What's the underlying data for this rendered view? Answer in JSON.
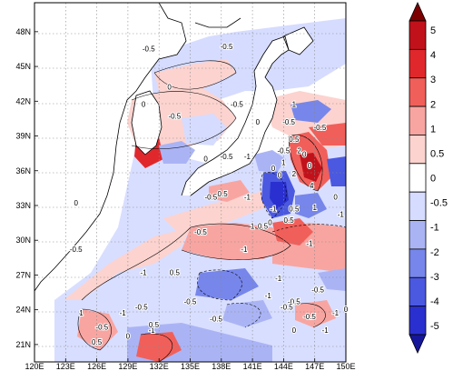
{
  "chart_data": {
    "type": "heatmap",
    "title": "",
    "xlabel": "",
    "ylabel": "",
    "x_ticks": [
      "120E",
      "123E",
      "126E",
      "129E",
      "132E",
      "135E",
      "138E",
      "141E",
      "144E",
      "147E",
      "150E"
    ],
    "y_ticks": [
      "21N",
      "24N",
      "27N",
      "30N",
      "33N",
      "36N",
      "39N",
      "42N",
      "45N",
      "48N"
    ],
    "xlim": [
      120,
      150
    ],
    "ylim": [
      19.5,
      50.5
    ],
    "grid": "dotted",
    "colorbar": {
      "levels": [
        "5",
        "4",
        "3",
        "2",
        "1",
        "0.5",
        "0",
        "-0.5",
        "-1",
        "-2",
        "-3",
        "-4",
        "-5"
      ],
      "colors": [
        "#7d0000",
        "#c1121b",
        "#e0282c",
        "#f15f5a",
        "#f8a5a1",
        "#fcd3cf",
        "#ffffff",
        "#d6dcff",
        "#aab4f5",
        "#7786ea",
        "#4b59e0",
        "#2a30cf",
        "#16169a"
      ],
      "orientation": "vertical",
      "placement": "right"
    },
    "contour_labels": [
      "-0.5",
      "-0.5",
      "0",
      "-0.5",
      "0",
      "-0.5",
      "1",
      "0",
      "-0.5",
      "-0.5",
      "0.5",
      "-0.5",
      "0",
      "-1",
      "-0.5",
      "0",
      "2",
      "1",
      "0",
      "0",
      "2",
      "4",
      "0",
      "-0.5",
      "-0.5",
      "-1",
      "1",
      "-1",
      "0.5",
      "0",
      "1",
      "-1",
      "0.5",
      "-1",
      "0",
      "-0.5",
      "-0.5",
      "-1",
      "-1",
      "0.5",
      "-1",
      "-0.5",
      "-0.5",
      "1",
      "-1",
      "-0.5",
      "-0.5",
      "-1",
      "0",
      "-1",
      "-0.5",
      "-0.5",
      "-0.5",
      "-1",
      "0",
      "-1",
      "0.5",
      "0",
      "0.5",
      "-0.5",
      "0.5",
      "0"
    ]
  }
}
